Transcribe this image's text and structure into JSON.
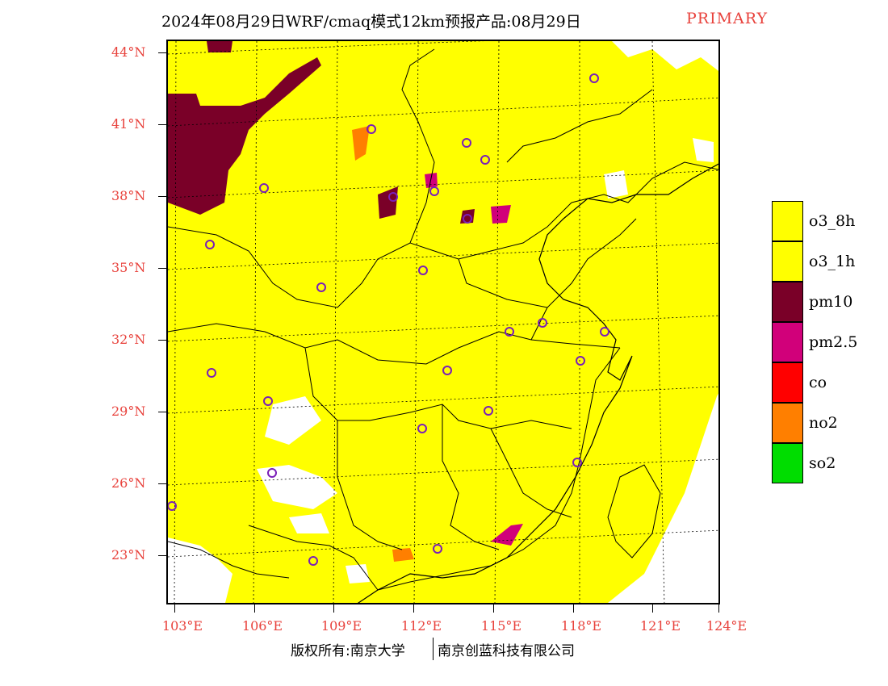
{
  "title": {
    "main": "2024年08月29日WRF/cmaq模式12km预报产品:08月29日",
    "tag": "PRIMARY"
  },
  "lat_labels": [
    "44°N",
    "41°N",
    "38°N",
    "35°N",
    "32°N",
    "29°N",
    "26°N",
    "23°N"
  ],
  "lon_labels": [
    "103°E",
    "106°E",
    "109°E",
    "112°E",
    "115°E",
    "118°E",
    "121°E",
    "124°E"
  ],
  "legend": [
    {
      "label": "o3_8h",
      "color": "#ffff00"
    },
    {
      "label": "o3_1h",
      "color": "#ffff00"
    },
    {
      "label": "pm10",
      "color": "#7a0028"
    },
    {
      "label": "pm2.5",
      "color": "#d1007a"
    },
    {
      "label": "co",
      "color": "#ff0000"
    },
    {
      "label": "no2",
      "color": "#ff7f00"
    },
    {
      "label": "so2",
      "color": "#00dd00"
    }
  ],
  "footer": {
    "left": "版权所有:南京大学",
    "right": "南京创蓝科技有限公司"
  }
}
